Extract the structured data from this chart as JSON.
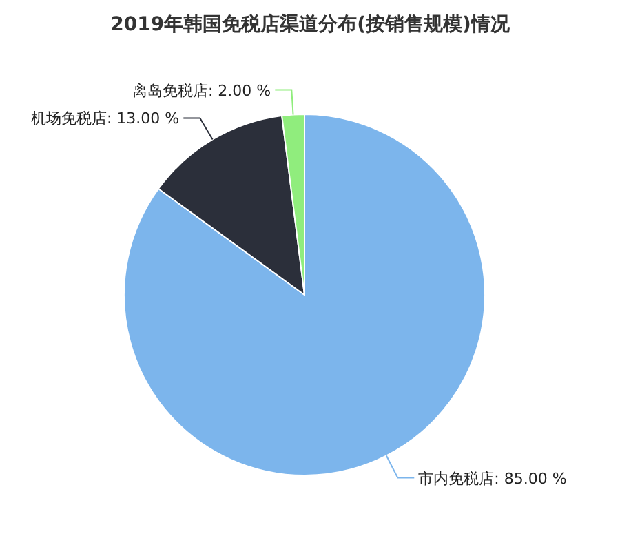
{
  "chart_data": {
    "type": "pie",
    "title": "2019年韩国免税店渠道分布(按销售规模)情况",
    "categories": [
      "市内免税店",
      "机场免税店",
      "离岛免税店"
    ],
    "values": [
      85,
      13,
      2
    ],
    "value_labels": [
      "85.00 %",
      "13.00 %",
      "2.00 %"
    ],
    "colors": [
      "#7cb5ec",
      "#2b2f3a",
      "#90ed7d"
    ],
    "legend": false
  }
}
